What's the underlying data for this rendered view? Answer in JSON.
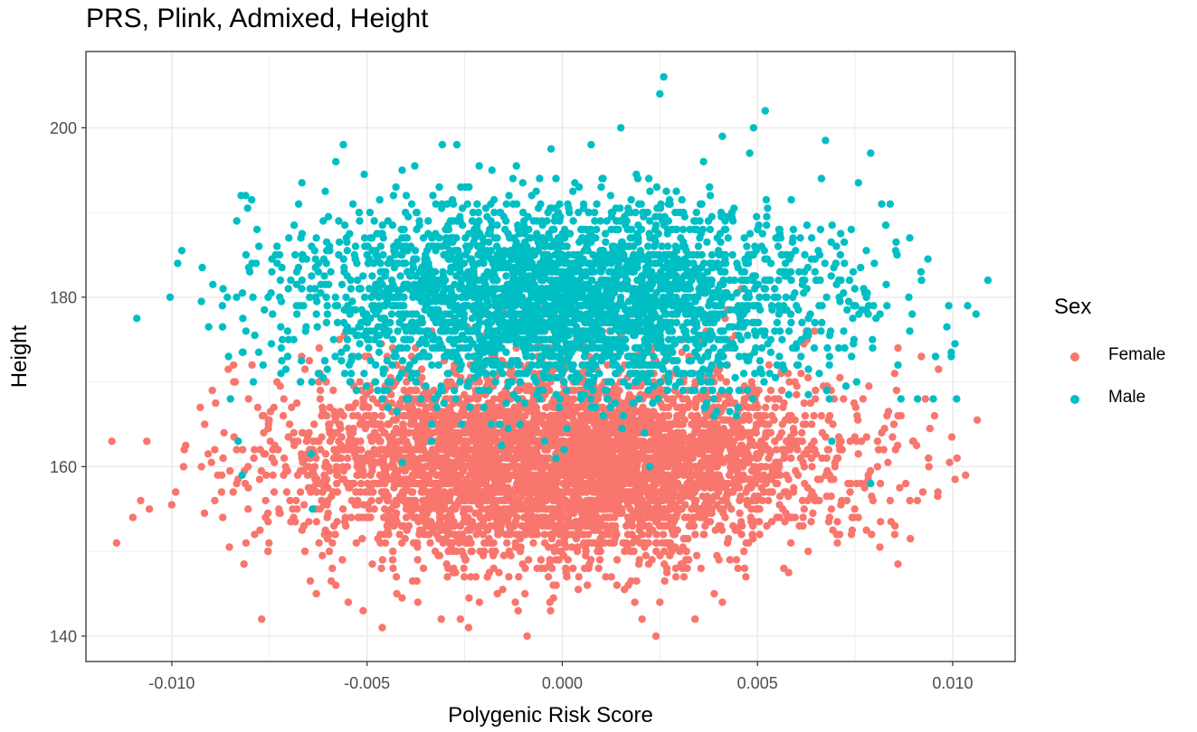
{
  "chart_data": {
    "type": "scatter",
    "title": "PRS, Plink, Admixed, Height",
    "xlabel": "Polygenic Risk Score",
    "ylabel": "Height",
    "xlim": [
      -0.0122,
      0.0116
    ],
    "ylim": [
      137,
      209
    ],
    "x_ticks": [
      -0.01,
      -0.005,
      0.0,
      0.005,
      0.01
    ],
    "x_tick_labels": [
      "-0.010",
      "-0.005",
      "0.000",
      "0.005",
      "0.010"
    ],
    "y_ticks": [
      140,
      160,
      180,
      200
    ],
    "y_tick_labels": [
      "140",
      "160",
      "180",
      "200"
    ],
    "grid": true,
    "legend": {
      "title": "Sex",
      "placement": "right"
    },
    "series": [
      {
        "name": "Female",
        "color": "#F8766D",
        "center": [
          0.0,
          160.5
        ],
        "sd": [
          0.0033,
          5.5
        ],
        "count": 5200,
        "extreme_points": [
          [
            -0.011,
            154
          ],
          [
            -0.0097,
            160
          ],
          [
            -0.0099,
            157
          ],
          [
            -0.0089,
            162
          ],
          [
            -0.0089,
            156
          ],
          [
            -0.0081,
            151
          ],
          [
            -0.0077,
            142
          ],
          [
            -0.0078,
            167
          ],
          [
            -0.0063,
            145
          ],
          [
            -0.0058,
            146
          ],
          [
            -0.0051,
            143
          ],
          [
            -0.0037,
            144
          ],
          [
            -0.0031,
            142
          ],
          [
            -0.0024,
            141
          ],
          [
            -0.0009,
            140
          ],
          [
            -0.0003,
            143
          ],
          [
            0.0024,
            140
          ],
          [
            0.0025,
            144
          ],
          [
            0.0034,
            142
          ],
          [
            0.0041,
            144
          ],
          [
            0.0045,
            148
          ],
          [
            0.0058,
            147.5
          ],
          [
            0.0063,
            150
          ],
          [
            0.0084,
            156
          ],
          [
            0.0086,
            174
          ],
          [
            0.0092,
            173
          ],
          [
            0.0093,
            168
          ],
          [
            0.0086,
            166
          ],
          [
            0.0081,
            162
          ],
          [
            0.0022,
            183
          ],
          [
            0.0014,
            189
          ]
        ]
      },
      {
        "name": "Male",
        "color": "#00BFC4",
        "center": [
          0.0,
          179.5
        ],
        "sd": [
          0.0033,
          5.5
        ],
        "count": 3300,
        "extreme_points": [
          [
            -0.0087,
            176.5
          ],
          [
            -0.0081,
            185
          ],
          [
            -0.0073,
            184
          ],
          [
            -0.0085,
            168
          ],
          [
            -0.0083,
            163
          ],
          [
            -0.0082,
            159
          ],
          [
            -0.0064,
            155
          ],
          [
            -0.0058,
            196
          ],
          [
            -0.0041,
            195
          ],
          [
            -0.0027,
            198
          ],
          [
            -0.0018,
            195
          ],
          [
            0.0015,
            200
          ],
          [
            0.0025,
            204
          ],
          [
            0.0026,
            206
          ],
          [
            0.0041,
            199
          ],
          [
            0.0048,
            197
          ],
          [
            0.0049,
            200
          ],
          [
            0.0052,
            202
          ],
          [
            0.0079,
            197
          ],
          [
            0.0079,
            158
          ],
          [
            0.0084,
            191
          ],
          [
            0.0089,
            187
          ],
          [
            0.0099,
            179
          ],
          [
            0.0106,
            178
          ],
          [
            0.0101,
            168
          ],
          [
            0.0086,
            172
          ],
          [
            0.0091,
            168
          ]
        ]
      }
    ]
  }
}
